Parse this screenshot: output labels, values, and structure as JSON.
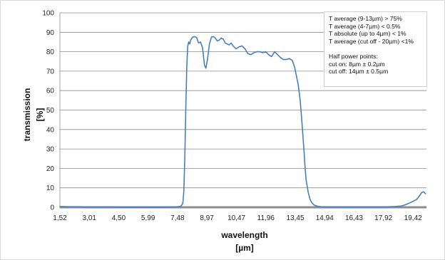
{
  "chart_data": {
    "type": "line",
    "title": "",
    "xlabel_lines": [
      "wavelength",
      "[µm]"
    ],
    "ylabel_lines": [
      "transmission",
      "[%]"
    ],
    "xlim": [
      1.52,
      20.1
    ],
    "ylim": [
      0,
      100
    ],
    "y_ticks": [
      0,
      10,
      20,
      30,
      40,
      50,
      60,
      70,
      80,
      90,
      100
    ],
    "x_ticks": [
      1.52,
      3.01,
      4.5,
      5.99,
      7.48,
      8.97,
      10.47,
      11.96,
      13.45,
      14.94,
      16.43,
      17.92,
      19.42
    ],
    "x_tick_labels": [
      "1,52",
      "3,01",
      "4,50",
      "5,99",
      "7,48",
      "8,97",
      "10,47",
      "11,96",
      "13,45",
      "14,94",
      "16,43",
      "17,92",
      "19,42"
    ],
    "grid": "horizontal",
    "annotations": [
      "T average (9-13µm) > 75%",
      "T average (4-7µm) < 0.5%",
      "T absolute (up to 4µm) < 1%",
      "T average (cut off - 20µm) <1%",
      "",
      "Half power points:",
      "cut on: 8µm ± 0.2µm",
      "cut off: 14µm ± 0.5µm"
    ],
    "series": [
      {
        "color": "#4a7ebb",
        "x": [
          1.52,
          2.0,
          2.5,
          3.0,
          3.5,
          4.0,
          4.5,
          5.0,
          5.5,
          6.0,
          6.5,
          7.0,
          7.4,
          7.65,
          7.75,
          7.8,
          7.85,
          7.9,
          7.95,
          8.0,
          8.05,
          8.1,
          8.15,
          8.25,
          8.35,
          8.45,
          8.55,
          8.65,
          8.75,
          8.85,
          8.92,
          9.0,
          9.1,
          9.2,
          9.3,
          9.4,
          9.5,
          9.6,
          9.7,
          9.8,
          9.9,
          10.0,
          10.1,
          10.2,
          10.3,
          10.45,
          10.6,
          10.75,
          10.9,
          11.05,
          11.2,
          11.35,
          11.5,
          11.65,
          11.8,
          11.95,
          12.1,
          12.25,
          12.4,
          12.55,
          12.7,
          12.85,
          13.0,
          13.15,
          13.3,
          13.42,
          13.5,
          13.6,
          13.7,
          13.8,
          13.9,
          13.95,
          14.0,
          14.1,
          14.2,
          14.3,
          14.4,
          14.5,
          14.6,
          14.75,
          15.0,
          15.5,
          16.0,
          16.5,
          17.0,
          17.5,
          18.0,
          18.5,
          18.8,
          19.0,
          19.2,
          19.4,
          19.6,
          19.75,
          19.85,
          19.95,
          20.05
        ],
        "y": [
          0.4,
          0.3,
          0.3,
          0.2,
          0.2,
          0.2,
          0.1,
          0.1,
          0.1,
          0.1,
          0.1,
          0.1,
          0.2,
          0.5,
          2,
          8,
          25,
          50,
          72,
          83,
          85,
          84,
          86,
          87.5,
          87.8,
          87.2,
          84.5,
          85,
          82,
          73,
          71.5,
          76,
          84,
          87.5,
          87.8,
          87,
          85.5,
          86,
          87,
          86.5,
          84.5,
          84,
          83.5,
          84.5,
          83,
          81.5,
          82.5,
          83,
          81.5,
          79,
          78.5,
          79.5,
          80,
          80,
          79.5,
          80,
          78.5,
          77.5,
          80,
          78.5,
          77,
          76,
          76,
          76.5,
          75.5,
          72,
          68,
          63,
          55,
          42,
          28,
          20,
          14,
          8,
          4,
          2.2,
          1.2,
          0.8,
          0.5,
          0.3,
          0.2,
          0.2,
          0.2,
          0.2,
          0.2,
          0.2,
          0.2,
          0.4,
          0.6,
          1.2,
          2,
          3,
          4,
          6,
          7.5,
          8,
          7
        ]
      }
    ]
  }
}
